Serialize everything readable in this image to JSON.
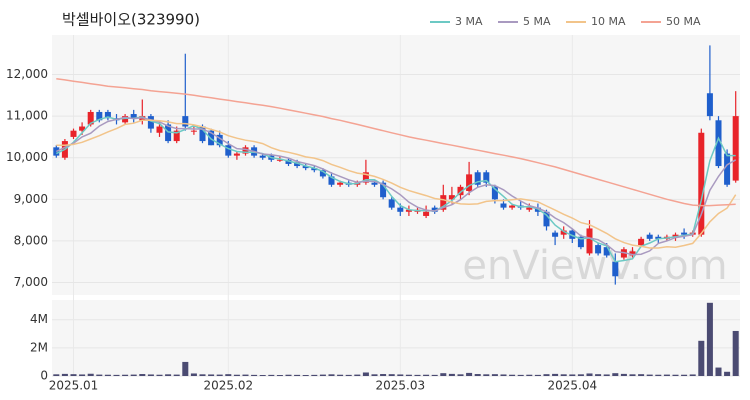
{
  "chart_data": [
    {
      "type": "candlestick",
      "title": "박셀바이오(323990)",
      "watermark": "enViewV.com",
      "up_color": "#e8242a",
      "down_color": "#1f5fcc",
      "ylim": [
        6700,
        12950
      ],
      "yticks": [
        {
          "value": 7000,
          "label": "7,000"
        },
        {
          "value": 8000,
          "label": "8,000"
        },
        {
          "value": 9000,
          "label": "9,000"
        },
        {
          "value": 10000,
          "label": "10,000"
        },
        {
          "value": 11000,
          "label": "11,000"
        },
        {
          "value": 12000,
          "label": "12,000"
        }
      ],
      "grid": true,
      "legend": "top-right",
      "open": [
        10250,
        10000,
        10500,
        10650,
        10800,
        11100,
        11100,
        10950,
        10850,
        11050,
        10900,
        11000,
        10600,
        10800,
        10400,
        11000,
        10650,
        10750,
        10650,
        10550,
        10300,
        10050,
        10100,
        10250,
        10050,
        10050,
        9950,
        9950,
        9900,
        9800,
        9750,
        9700,
        9550,
        9350,
        9400,
        9350,
        9400,
        9400,
        9400,
        9000,
        8800,
        8700,
        8700,
        8600,
        8800,
        8750,
        9000,
        9100,
        9200,
        9650,
        9650,
        9300,
        8900,
        8800,
        8850,
        8750,
        8800,
        8700,
        8200,
        8150,
        8250,
        8100,
        7700,
        7900,
        7850,
        7500,
        7600,
        7650,
        7900,
        8150,
        8100,
        8050,
        8100,
        8200,
        8150,
        8150,
        11550,
        10900,
        10100,
        9450
      ],
      "high": [
        10300,
        10450,
        10700,
        10850,
        11150,
        11150,
        11150,
        11050,
        11050,
        11150,
        11400,
        11050,
        10850,
        10900,
        10750,
        12500,
        10750,
        10800,
        10700,
        10650,
        10400,
        10150,
        10300,
        10300,
        10100,
        10100,
        10050,
        10000,
        9950,
        9850,
        9800,
        9750,
        9650,
        9450,
        9450,
        9450,
        9950,
        9450,
        9450,
        9050,
        8900,
        8850,
        8800,
        8850,
        8850,
        9350,
        9300,
        9350,
        9900,
        9700,
        9700,
        9350,
        9000,
        8900,
        8950,
        8900,
        8900,
        8750,
        8250,
        8350,
        8300,
        8150,
        8500,
        7950,
        7950,
        7700,
        7850,
        7850,
        8100,
        8200,
        8150,
        8150,
        8200,
        8300,
        8250,
        10700,
        12700,
        11000,
        10200,
        11600
      ],
      "low": [
        10000,
        9950,
        10450,
        10550,
        10750,
        10850,
        10900,
        10800,
        10800,
        10850,
        10800,
        10600,
        10500,
        10350,
        10350,
        10650,
        10550,
        10350,
        10300,
        10250,
        10000,
        9950,
        10050,
        10000,
        9950,
        9900,
        9900,
        9800,
        9750,
        9700,
        9650,
        9500,
        9300,
        9300,
        9300,
        9300,
        9350,
        9300,
        9000,
        8750,
        8600,
        8600,
        8650,
        8550,
        8650,
        8700,
        8900,
        9000,
        9100,
        9300,
        9300,
        8900,
        8750,
        8750,
        8750,
        8700,
        8600,
        8250,
        7900,
        8050,
        7950,
        7800,
        7650,
        7650,
        7600,
        6950,
        7550,
        7600,
        7850,
        8000,
        7950,
        8000,
        8000,
        8050,
        8100,
        8100,
        10900,
        9750,
        9300,
        9400
      ],
      "close": [
        10050,
        10400,
        10650,
        10750,
        11100,
        10900,
        10950,
        10900,
        11000,
        10950,
        11000,
        10700,
        10750,
        10400,
        10650,
        10750,
        10650,
        10400,
        10300,
        10300,
        10050,
        10100,
        10250,
        10050,
        10000,
        9950,
        9950,
        9850,
        9800,
        9750,
        9700,
        9550,
        9350,
        9400,
        9350,
        9400,
        9650,
        9350,
        9050,
        8800,
        8700,
        8750,
        8750,
        8700,
        8700,
        9100,
        9100,
        9300,
        9600,
        9350,
        9400,
        9000,
        8800,
        8850,
        8800,
        8800,
        8700,
        8350,
        8100,
        8250,
        8050,
        7850,
        8300,
        7700,
        7650,
        7150,
        7800,
        7750,
        8050,
        8050,
        8050,
        8100,
        8150,
        8150,
        8200,
        10600,
        11000,
        9800,
        9350,
        11000
      ],
      "series": [
        {
          "name": "3 MA",
          "color": "#6cc9c4",
          "values": [
            10100,
            10200,
            10370,
            10600,
            10830,
            10920,
            10980,
            10920,
            10950,
            10950,
            10980,
            10880,
            10820,
            10620,
            10600,
            10680,
            10770,
            10680,
            10450,
            10330,
            10220,
            10150,
            10130,
            10130,
            10100,
            10000,
            9970,
            9920,
            9870,
            9800,
            9750,
            9670,
            9530,
            9430,
            9370,
            9380,
            9470,
            9470,
            9350,
            9070,
            8850,
            8750,
            8730,
            8730,
            8720,
            8830,
            8970,
            9170,
            9330,
            9420,
            9450,
            9250,
            9070,
            8880,
            8820,
            8820,
            8770,
            8620,
            8380,
            8230,
            8130,
            8050,
            8070,
            7950,
            7880,
            7500,
            7530,
            7570,
            7870,
            7950,
            8050,
            8070,
            8100,
            8130,
            8170,
            8980,
            9930,
            10470,
            10050,
            10050
          ]
        },
        {
          "name": "5 MA",
          "color": "#a99ac0",
          "values": [
            10150,
            10250,
            10350,
            10500,
            10590,
            10760,
            10870,
            10920,
            10970,
            10940,
            10960,
            10910,
            10860,
            10760,
            10700,
            10700,
            10690,
            10690,
            10600,
            10470,
            10340,
            10220,
            10200,
            10150,
            10090,
            10070,
            10040,
            9990,
            9910,
            9860,
            9810,
            9730,
            9630,
            9550,
            9470,
            9410,
            9430,
            9430,
            9360,
            9250,
            9110,
            8930,
            8810,
            8740,
            8720,
            8800,
            8870,
            8990,
            9160,
            9290,
            9350,
            9330,
            9230,
            9080,
            8960,
            8850,
            8790,
            8700,
            8550,
            8440,
            8290,
            8120,
            8070,
            8030,
            7910,
            7740,
            7720,
            7670,
            7680,
            7760,
            7940,
            8000,
            8080,
            8110,
            8150,
            8640,
            9220,
            9550,
            9830,
            9950
          ]
        },
        {
          "name": "10 MA",
          "color": "#f2c48a",
          "values": [
            10300,
            10300,
            10320,
            10370,
            10450,
            10530,
            10620,
            10700,
            10800,
            10830,
            10900,
            10900,
            10890,
            10860,
            10820,
            10820,
            10790,
            10740,
            10680,
            10620,
            10530,
            10470,
            10420,
            10390,
            10340,
            10240,
            10170,
            10130,
            10080,
            10020,
            9990,
            9930,
            9840,
            9770,
            9690,
            9630,
            9600,
            9550,
            9480,
            9390,
            9290,
            9210,
            9150,
            9090,
            9020,
            8990,
            8930,
            8890,
            8880,
            8890,
            8950,
            8970,
            8970,
            8990,
            9010,
            8980,
            8940,
            8840,
            8740,
            8640,
            8550,
            8440,
            8390,
            8290,
            8180,
            8050,
            7960,
            7900,
            7870,
            7830,
            7830,
            7860,
            7850,
            7890,
            7940,
            8180,
            8460,
            8660,
            8790,
            9110
          ]
        },
        {
          "name": "50 MA",
          "color": "#f4a393",
          "values": [
            11900,
            11870,
            11840,
            11810,
            11780,
            11750,
            11720,
            11700,
            11680,
            11660,
            11640,
            11610,
            11590,
            11570,
            11550,
            11530,
            11500,
            11470,
            11440,
            11410,
            11380,
            11350,
            11320,
            11290,
            11260,
            11230,
            11190,
            11150,
            11110,
            11070,
            11030,
            10990,
            10940,
            10900,
            10850,
            10800,
            10750,
            10700,
            10650,
            10600,
            10550,
            10500,
            10460,
            10420,
            10380,
            10340,
            10300,
            10260,
            10220,
            10180,
            10140,
            10100,
            10060,
            10020,
            9980,
            9930,
            9880,
            9830,
            9780,
            9720,
            9660,
            9600,
            9540,
            9480,
            9420,
            9360,
            9300,
            9240,
            9180,
            9120,
            9060,
            9000,
            8950,
            8900,
            8860,
            8850,
            8850,
            8860,
            8870,
            8880
          ]
        }
      ]
    },
    {
      "type": "bar",
      "color": "#4b4b72",
      "ylim": [
        0,
        5400000
      ],
      "yticks": [
        0,
        {
          "value": 2000000,
          "label": "2M"
        },
        {
          "value": 4000000,
          "label": "4M"
        }
      ],
      "xticks": [
        {
          "value": 2,
          "label": "2025.01"
        },
        {
          "value": 20,
          "label": "2025.02"
        },
        {
          "value": 40,
          "label": "2025.03"
        },
        {
          "value": 60,
          "label": "2025.04"
        }
      ],
      "values": [
        120000,
        150000,
        130000,
        110000,
        160000,
        100000,
        90000,
        80000,
        90000,
        100000,
        140000,
        110000,
        90000,
        120000,
        100000,
        1000000,
        180000,
        120000,
        110000,
        100000,
        130000,
        90000,
        100000,
        80000,
        70000,
        80000,
        70000,
        90000,
        80000,
        70000,
        80000,
        100000,
        120000,
        90000,
        80000,
        100000,
        250000,
        120000,
        140000,
        130000,
        110000,
        90000,
        80000,
        90000,
        80000,
        200000,
        150000,
        120000,
        220000,
        140000,
        120000,
        130000,
        110000,
        90000,
        80000,
        90000,
        80000,
        130000,
        150000,
        120000,
        110000,
        120000,
        180000,
        130000,
        110000,
        200000,
        150000,
        120000,
        130000,
        100000,
        90000,
        100000,
        90000,
        90000,
        110000,
        2500000,
        5200000,
        600000,
        300000,
        3200000
      ]
    }
  ]
}
